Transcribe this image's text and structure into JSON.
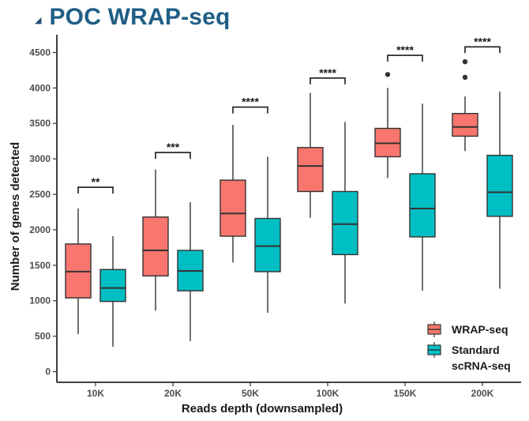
{
  "title": "POC WRAP-seq",
  "chart_data": {
    "type": "boxplot",
    "title": "POC WRAP-seq",
    "xlabel": "Reads depth (downsampled)",
    "ylabel": "Number of genes detected",
    "ylim": [
      -150,
      4750
    ],
    "yticks": [
      0,
      500,
      1000,
      1500,
      2000,
      2500,
      3000,
      3500,
      4000,
      4500
    ],
    "categories": [
      "10K",
      "20K",
      "50K",
      "100K",
      "150K",
      "200K"
    ],
    "grid": false,
    "legend_position": "bottom-right",
    "series": [
      {
        "name": "WRAP-seq",
        "color": "#f8766d",
        "boxes": [
          {
            "whisker_low": 530,
            "q1": 1040,
            "median": 1410,
            "q3": 1800,
            "whisker_high": 2300,
            "outliers": []
          },
          {
            "whisker_low": 860,
            "q1": 1350,
            "median": 1710,
            "q3": 2180,
            "whisker_high": 2850,
            "outliers": []
          },
          {
            "whisker_low": 1540,
            "q1": 1910,
            "median": 2230,
            "q3": 2700,
            "whisker_high": 3480,
            "outliers": []
          },
          {
            "whisker_low": 2170,
            "q1": 2540,
            "median": 2900,
            "q3": 3160,
            "whisker_high": 3930,
            "outliers": []
          },
          {
            "whisker_low": 2730,
            "q1": 3030,
            "median": 3220,
            "q3": 3430,
            "whisker_high": 4000,
            "outliers": [
              4190
            ]
          },
          {
            "whisker_low": 3110,
            "q1": 3320,
            "median": 3450,
            "q3": 3640,
            "whisker_high": 3880,
            "outliers": [
              4370,
              4150
            ]
          }
        ]
      },
      {
        "name": "Standard scRNA-seq",
        "color": "#00bfc4",
        "boxes": [
          {
            "whisker_low": 350,
            "q1": 990,
            "median": 1180,
            "q3": 1440,
            "whisker_high": 1910,
            "outliers": []
          },
          {
            "whisker_low": 430,
            "q1": 1140,
            "median": 1420,
            "q3": 1710,
            "whisker_high": 2390,
            "outliers": []
          },
          {
            "whisker_low": 830,
            "q1": 1410,
            "median": 1770,
            "q3": 2160,
            "whisker_high": 3030,
            "outliers": []
          },
          {
            "whisker_low": 960,
            "q1": 1650,
            "median": 2080,
            "q3": 2540,
            "whisker_high": 3520,
            "outliers": []
          },
          {
            "whisker_low": 1140,
            "q1": 1900,
            "median": 2300,
            "q3": 2790,
            "whisker_high": 3780,
            "outliers": []
          },
          {
            "whisker_low": 1170,
            "q1": 2190,
            "median": 2530,
            "q3": 3050,
            "whisker_high": 3950,
            "outliers": []
          }
        ]
      }
    ],
    "significance": [
      {
        "category": "10K",
        "label": "**",
        "bracket_y": 2600
      },
      {
        "category": "20K",
        "label": "***",
        "bracket_y": 3090
      },
      {
        "category": "50K",
        "label": "****",
        "bracket_y": 3730
      },
      {
        "category": "100K",
        "label": "****",
        "bracket_y": 4140
      },
      {
        "category": "150K",
        "label": "****",
        "bracket_y": 4460
      },
      {
        "category": "200K",
        "label": "****",
        "bracket_y": 4580
      }
    ],
    "legend": [
      "WRAP-seq",
      "Standard scRNA-seq"
    ]
  }
}
